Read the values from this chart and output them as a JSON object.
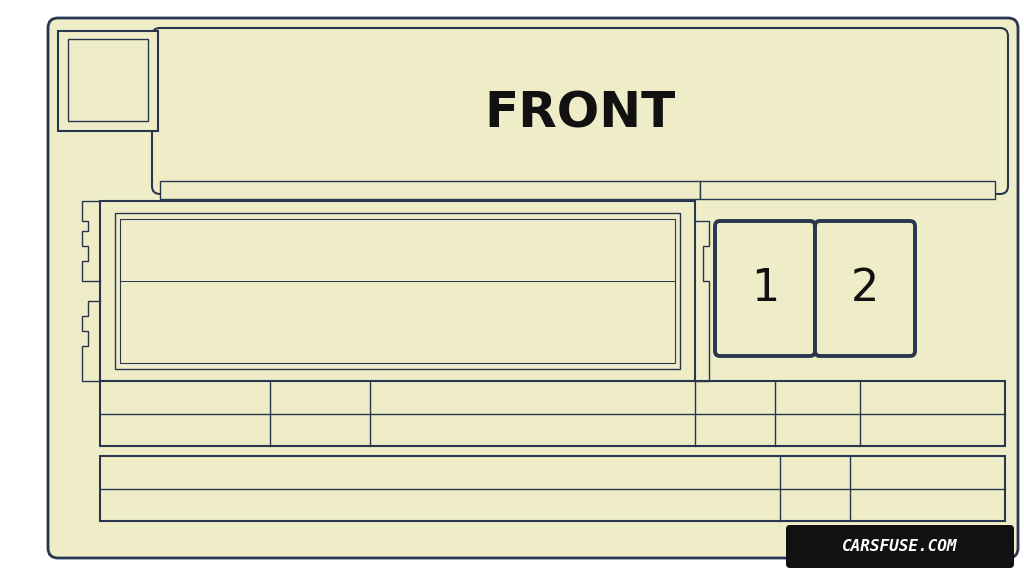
{
  "bg_color": "#eeedc8",
  "outline_color": "#2a3550",
  "white_bg": "#ffffff",
  "title": "FRONT",
  "title_fontsize": 36,
  "title_fontweight": "bold",
  "watermark_text": "CARSFUSE.COM",
  "watermark_bg": "#111111",
  "watermark_color": "#ffffff",
  "box1_label": "1",
  "box2_label": "2",
  "fig_width": 10.24,
  "fig_height": 5.76,
  "lw_outer": 2.0,
  "lw_mid": 1.5,
  "lw_thin": 1.0
}
